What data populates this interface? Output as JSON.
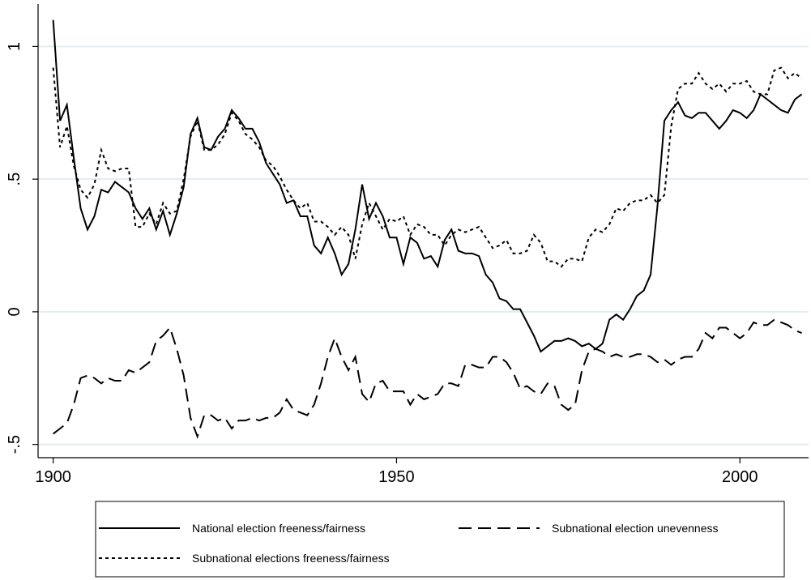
{
  "chart_data": {
    "type": "line",
    "x": [
      1900,
      1901,
      1902,
      1903,
      1904,
      1905,
      1906,
      1907,
      1908,
      1909,
      1910,
      1911,
      1912,
      1913,
      1914,
      1915,
      1916,
      1917,
      1918,
      1919,
      1920,
      1921,
      1922,
      1923,
      1924,
      1925,
      1926,
      1927,
      1928,
      1929,
      1930,
      1931,
      1932,
      1933,
      1934,
      1935,
      1936,
      1937,
      1938,
      1939,
      1940,
      1941,
      1942,
      1943,
      1944,
      1945,
      1946,
      1947,
      1948,
      1949,
      1950,
      1951,
      1952,
      1953,
      1954,
      1955,
      1956,
      1957,
      1958,
      1959,
      1960,
      1961,
      1962,
      1963,
      1964,
      1965,
      1966,
      1967,
      1968,
      1969,
      1970,
      1971,
      1972,
      1973,
      1974,
      1975,
      1976,
      1977,
      1978,
      1979,
      1980,
      1981,
      1982,
      1983,
      1984,
      1985,
      1986,
      1987,
      1988,
      1989,
      1990,
      1991,
      1992,
      1993,
      1994,
      1995,
      1996,
      1997,
      1998,
      1999,
      2000,
      2001,
      2002,
      2003,
      2004,
      2005,
      2006,
      2007,
      2008,
      2009
    ],
    "series": [
      {
        "name": "National election freeness/fairness",
        "color": "#000000",
        "style": "solid",
        "values": [
          1.1,
          0.72,
          0.78,
          0.58,
          0.39,
          0.31,
          0.36,
          0.46,
          0.45,
          0.49,
          0.47,
          0.45,
          0.39,
          0.35,
          0.39,
          0.31,
          0.38,
          0.29,
          0.37,
          0.47,
          0.67,
          0.73,
          0.62,
          0.61,
          0.66,
          0.69,
          0.76,
          0.73,
          0.69,
          0.69,
          0.64,
          0.56,
          0.52,
          0.48,
          0.41,
          0.42,
          0.36,
          0.36,
          0.25,
          0.22,
          0.28,
          0.22,
          0.14,
          0.18,
          0.31,
          0.48,
          0.35,
          0.41,
          0.36,
          0.28,
          0.28,
          0.18,
          0.28,
          0.26,
          0.2,
          0.21,
          0.17,
          0.27,
          0.31,
          0.23,
          0.22,
          0.22,
          0.21,
          0.14,
          0.11,
          0.05,
          0.04,
          0.01,
          0.01,
          -0.04,
          -0.09,
          -0.15,
          -0.13,
          -0.11,
          -0.11,
          -0.1,
          -0.11,
          -0.13,
          -0.12,
          -0.14,
          -0.12,
          -0.03,
          -0.01,
          -0.03,
          0.01,
          0.06,
          0.08,
          0.14,
          0.4,
          0.72,
          0.76,
          0.79,
          0.74,
          0.73,
          0.75,
          0.75,
          0.72,
          0.69,
          0.72,
          0.76,
          0.75,
          0.73,
          0.76,
          0.82,
          0.8,
          0.78,
          0.76,
          0.75,
          0.8,
          0.82
        ]
      },
      {
        "name": "Subnational election unevenness",
        "color": "#000000",
        "style": "dashed",
        "values": [
          -0.46,
          -0.44,
          -0.42,
          -0.35,
          -0.25,
          -0.24,
          -0.25,
          -0.27,
          -0.25,
          -0.26,
          -0.26,
          -0.22,
          -0.23,
          -0.21,
          -0.19,
          -0.11,
          -0.09,
          -0.06,
          -0.14,
          -0.24,
          -0.4,
          -0.47,
          -0.39,
          -0.39,
          -0.41,
          -0.4,
          -0.44,
          -0.41,
          -0.41,
          -0.4,
          -0.41,
          -0.4,
          -0.4,
          -0.38,
          -0.33,
          -0.37,
          -0.38,
          -0.39,
          -0.35,
          -0.27,
          -0.17,
          -0.1,
          -0.17,
          -0.22,
          -0.17,
          -0.31,
          -0.34,
          -0.27,
          -0.26,
          -0.3,
          -0.3,
          -0.3,
          -0.35,
          -0.31,
          -0.33,
          -0.32,
          -0.31,
          -0.27,
          -0.27,
          -0.28,
          -0.2,
          -0.2,
          -0.21,
          -0.21,
          -0.17,
          -0.17,
          -0.19,
          -0.23,
          -0.29,
          -0.28,
          -0.3,
          -0.31,
          -0.27,
          -0.28,
          -0.35,
          -0.37,
          -0.35,
          -0.22,
          -0.15,
          -0.14,
          -0.15,
          -0.17,
          -0.16,
          -0.17,
          -0.17,
          -0.16,
          -0.16,
          -0.17,
          -0.19,
          -0.18,
          -0.2,
          -0.18,
          -0.17,
          -0.17,
          -0.14,
          -0.08,
          -0.1,
          -0.06,
          -0.06,
          -0.08,
          -0.1,
          -0.08,
          -0.04,
          -0.05,
          -0.05,
          -0.03,
          -0.04,
          -0.05,
          -0.07,
          -0.08
        ]
      },
      {
        "name": "Subnational elections freeness/fairness",
        "color": "#000000",
        "style": "dotted",
        "values": [
          0.92,
          0.62,
          0.7,
          0.55,
          0.46,
          0.43,
          0.48,
          0.61,
          0.54,
          0.53,
          0.54,
          0.54,
          0.32,
          0.32,
          0.37,
          0.33,
          0.41,
          0.37,
          0.38,
          0.5,
          0.66,
          0.72,
          0.61,
          0.61,
          0.63,
          0.67,
          0.75,
          0.72,
          0.67,
          0.65,
          0.62,
          0.57,
          0.55,
          0.51,
          0.46,
          0.42,
          0.39,
          0.41,
          0.34,
          0.34,
          0.32,
          0.29,
          0.32,
          0.29,
          0.2,
          0.33,
          0.41,
          0.36,
          0.31,
          0.35,
          0.34,
          0.36,
          0.29,
          0.33,
          0.32,
          0.29,
          0.29,
          0.25,
          0.29,
          0.31,
          0.3,
          0.31,
          0.32,
          0.28,
          0.24,
          0.25,
          0.27,
          0.22,
          0.22,
          0.23,
          0.29,
          0.26,
          0.19,
          0.19,
          0.17,
          0.2,
          0.2,
          0.19,
          0.28,
          0.31,
          0.3,
          0.33,
          0.39,
          0.38,
          0.41,
          0.42,
          0.42,
          0.44,
          0.41,
          0.44,
          0.7,
          0.84,
          0.86,
          0.86,
          0.9,
          0.86,
          0.84,
          0.86,
          0.83,
          0.86,
          0.86,
          0.87,
          0.83,
          0.82,
          0.82,
          0.91,
          0.92,
          0.88,
          0.9,
          0.88
        ]
      }
    ],
    "xlim": [
      1897.8,
      2010
    ],
    "xticks": [
      1900,
      1950,
      2000
    ],
    "ylim": [
      -0.55,
      1.16
    ],
    "yticks": [
      {
        "value": -0.5,
        "label": "-.5"
      },
      0,
      {
        "value": 0.5,
        "label": ".5"
      },
      1
    ],
    "grid": true,
    "legend": "bottom"
  }
}
